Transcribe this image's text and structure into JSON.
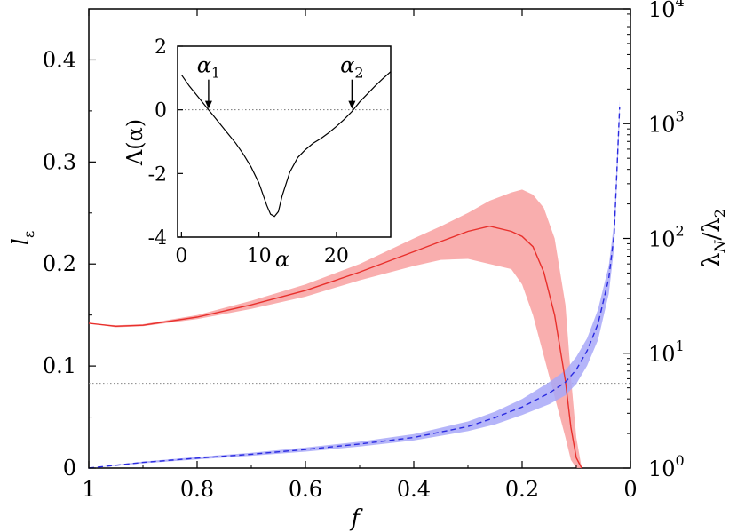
{
  "chart_data": [
    {
      "type": "line",
      "xlabel": "f",
      "ylabel_left": "l",
      "ylabel_left_sub": "ε",
      "ylabel_right": "λ",
      "ylabel_right_sub1": "N",
      "ylabel_right_mid": "/λ",
      "ylabel_right_sub2": "2",
      "xlim": [
        1,
        0
      ],
      "ylim_left": [
        0,
        0.45
      ],
      "ylim_right": [
        1,
        10000
      ],
      "right_scale": "log",
      "x_ticks": [
        "1",
        "0.8",
        "0.6",
        "0.4",
        "0.2",
        "0"
      ],
      "y_left_ticks": [
        "0",
        "0.1",
        "0.2",
        "0.3",
        "0.4"
      ],
      "y_right_ticks": [
        {
          "base": "10",
          "exp": "0"
        },
        {
          "base": "10",
          "exp": "1"
        },
        {
          "base": "10",
          "exp": "2"
        },
        {
          "base": "10",
          "exp": "3"
        },
        {
          "base": "10",
          "exp": "4"
        }
      ],
      "reference_line_left": 0.083,
      "series": [
        {
          "axis": "left",
          "color": "#e8302c",
          "band_color": "#f8a0a0",
          "style": "solid",
          "x": [
            1.0,
            0.95,
            0.9,
            0.8,
            0.7,
            0.6,
            0.5,
            0.4,
            0.35,
            0.3,
            0.26,
            0.22,
            0.2,
            0.18,
            0.16,
            0.14,
            0.12,
            0.11,
            0.1,
            0.09
          ],
          "y": [
            0.142,
            0.139,
            0.14,
            0.148,
            0.16,
            0.174,
            0.192,
            0.212,
            0.222,
            0.232,
            0.237,
            0.232,
            0.227,
            0.217,
            0.192,
            0.15,
            0.085,
            0.04,
            0.01,
            0.0
          ],
          "band_lower": [
            0.142,
            0.138,
            0.139,
            0.146,
            0.156,
            0.168,
            0.184,
            0.198,
            0.204,
            0.205,
            0.2,
            0.195,
            0.18,
            0.15,
            0.11,
            0.07,
            0.03,
            0.008,
            0.0,
            0.0
          ],
          "band_upper": [
            0.142,
            0.14,
            0.141,
            0.15,
            0.164,
            0.18,
            0.2,
            0.225,
            0.237,
            0.25,
            0.262,
            0.27,
            0.273,
            0.268,
            0.255,
            0.225,
            0.16,
            0.09,
            0.03,
            0.0
          ]
        },
        {
          "axis": "right",
          "color": "#2a2ae0",
          "band_color": "#a8a8f8",
          "style": "dashed",
          "x": [
            1.0,
            0.9,
            0.8,
            0.7,
            0.6,
            0.5,
            0.4,
            0.3,
            0.25,
            0.2,
            0.15,
            0.12,
            0.1,
            0.08,
            0.06,
            0.04,
            0.03,
            0.02
          ],
          "y": [
            1.0,
            1.12,
            1.22,
            1.32,
            1.45,
            1.62,
            1.85,
            2.3,
            2.75,
            3.4,
            4.5,
            5.6,
            7.2,
            10.5,
            18,
            45,
            110,
            1400
          ],
          "band_lower": [
            1.0,
            1.1,
            1.19,
            1.28,
            1.39,
            1.54,
            1.74,
            2.1,
            2.4,
            2.9,
            3.6,
            4.3,
            5.4,
            7.8,
            13,
            33,
            85,
            1100
          ],
          "band_upper": [
            1.0,
            1.14,
            1.25,
            1.36,
            1.51,
            1.7,
            1.98,
            2.55,
            3.1,
            4.0,
            5.6,
            7.1,
            9.3,
            13.5,
            24,
            58,
            140,
            1600
          ]
        }
      ]
    },
    {
      "type": "line",
      "xlabel": "α",
      "ylabel": "Λ(α)",
      "xlim": [
        -0.5,
        27
      ],
      "ylim": [
        -4,
        2
      ],
      "x_ticks": [
        "0",
        "10",
        "20"
      ],
      "y_ticks": [
        "2",
        "0",
        "-2",
        "-4"
      ],
      "reference_line": 0,
      "annotations": [
        {
          "text": "α",
          "sub": "1",
          "x": 3.5
        },
        {
          "text": "α",
          "sub": "2",
          "x": 22.0
        }
      ],
      "series": [
        {
          "color": "#000000",
          "x": [
            0,
            1,
            2,
            3,
            3.5,
            4,
            5,
            6,
            7,
            8,
            9,
            10,
            10.5,
            11,
            11.5,
            12,
            12.5,
            13,
            14,
            15,
            16,
            17,
            18,
            19,
            20,
            21,
            22,
            23,
            24,
            25,
            26,
            27
          ],
          "y": [
            1.1,
            0.75,
            0.45,
            0.15,
            0.0,
            -0.15,
            -0.45,
            -0.75,
            -1.05,
            -1.4,
            -1.8,
            -2.3,
            -2.65,
            -3.0,
            -3.28,
            -3.35,
            -3.2,
            -2.7,
            -1.95,
            -1.5,
            -1.25,
            -1.05,
            -0.9,
            -0.72,
            -0.52,
            -0.3,
            -0.05,
            0.25,
            0.5,
            0.75,
            0.98,
            1.2
          ]
        }
      ]
    }
  ]
}
